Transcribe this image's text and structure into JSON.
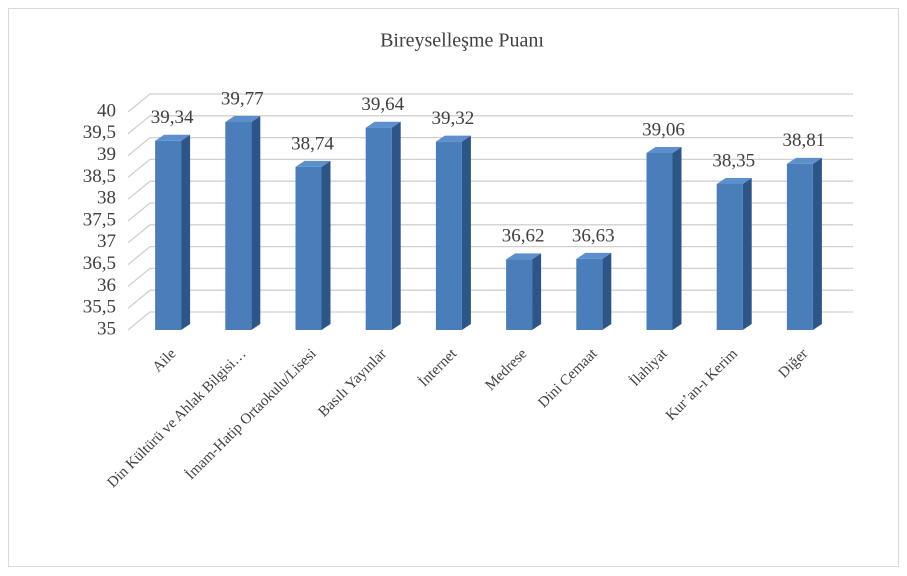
{
  "chart_data": {
    "type": "bar3d",
    "title": "Bireyselleşme Puanı",
    "categories": [
      "Aile",
      "Din Kültürü ve Ahlak Bilgisi…",
      "İmam-Hatip Ortaokulu/Lisesi",
      "Basılı Yayınlar",
      "İnternet",
      "Medrese",
      "Dini Cemaat",
      "İlahiyat",
      "Kur’an-ı Kerim",
      "Diğer"
    ],
    "values": [
      39.34,
      39.77,
      38.74,
      39.64,
      39.32,
      36.62,
      36.63,
      39.06,
      38.35,
      38.81
    ],
    "value_labels": [
      "39,34",
      "39,77",
      "38,74",
      "39,64",
      "39,32",
      "36,62",
      "36,63",
      "39,06",
      "38,35",
      "38,81"
    ],
    "color": "#4a7ebb",
    "ylim": [
      35,
      40
    ],
    "yticks": [
      35,
      {
        "value": 35.5,
        "label": "35,5"
      },
      36,
      {
        "value": 36.5,
        "label": "36,5"
      },
      37,
      {
        "value": 37.5,
        "label": "37,5"
      },
      38,
      {
        "value": 38.5,
        "label": "38,5"
      },
      39,
      {
        "value": 39.5,
        "label": "39,5"
      },
      40
    ],
    "grid": true
  }
}
